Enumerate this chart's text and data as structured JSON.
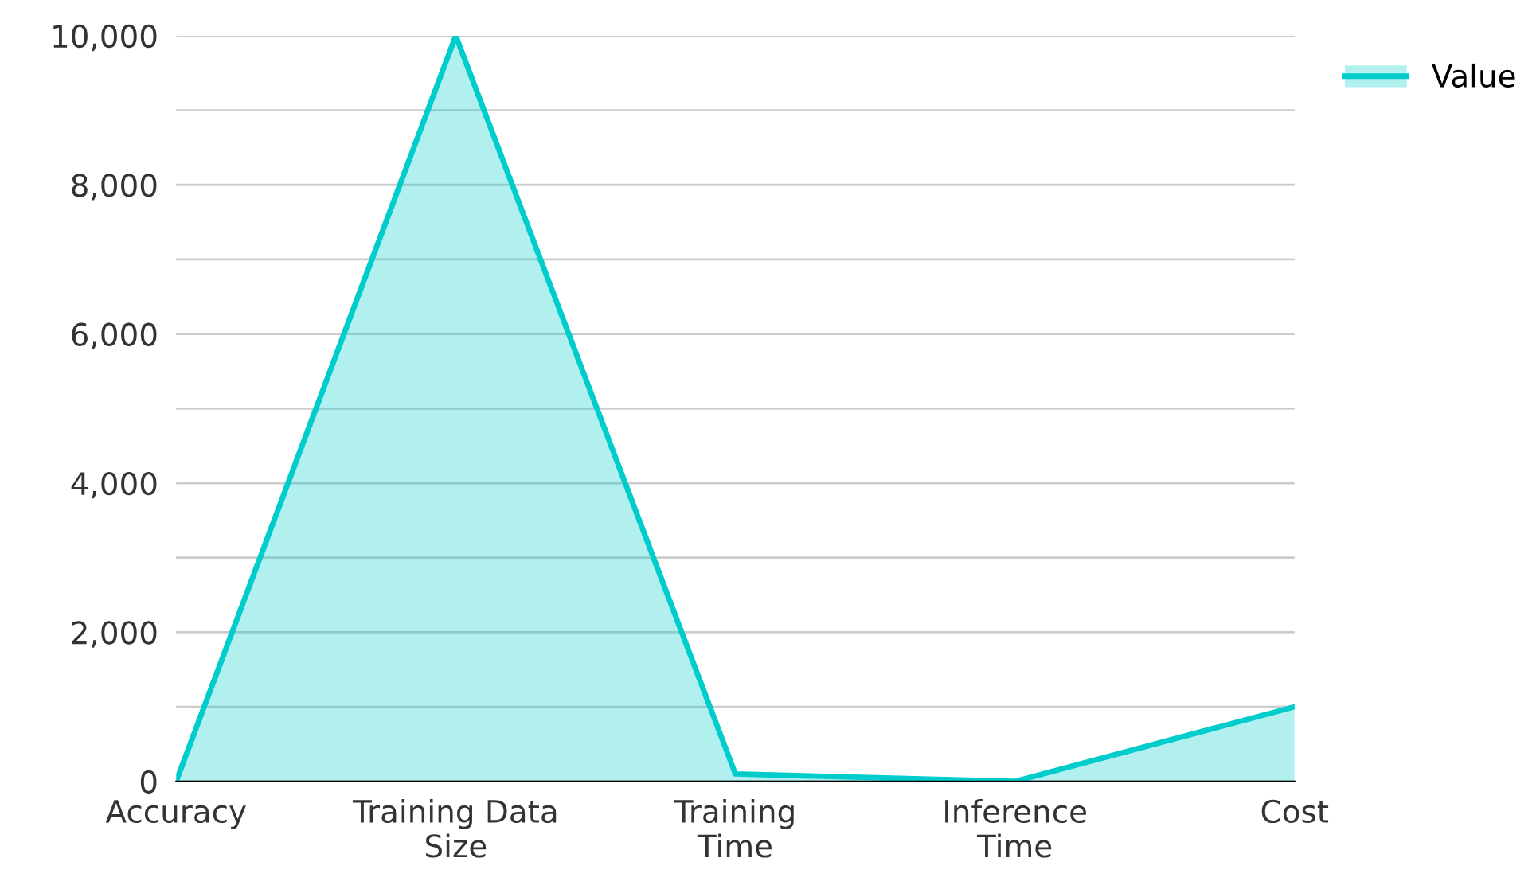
{
  "chart_data": {
    "type": "area",
    "categories": [
      "Accuracy",
      "Training Data\nSize",
      "Training\nTime",
      "Inference\nTime",
      "Cost"
    ],
    "series": [
      {
        "name": "Value",
        "color": "#00cccc",
        "values": [
          0,
          10000,
          100,
          0,
          1000
        ]
      }
    ],
    "ylim": [
      0,
      10000
    ],
    "yticks": [
      0,
      {
        "value": 1000,
        "label": null
      },
      {
        "value": 2000,
        "label": "2,000"
      },
      {
        "value": 3000,
        "label": null
      },
      {
        "value": 4000,
        "label": "4,000"
      },
      {
        "value": 5000,
        "label": null
      },
      {
        "value": 6000,
        "label": "6,000"
      },
      {
        "value": 7000,
        "label": null
      },
      {
        "value": 8000,
        "label": "8,000"
      },
      {
        "value": 9000,
        "label": null
      },
      {
        "value": 10000,
        "label": "10,000"
      }
    ],
    "grid": "y",
    "legend": "top right"
  }
}
